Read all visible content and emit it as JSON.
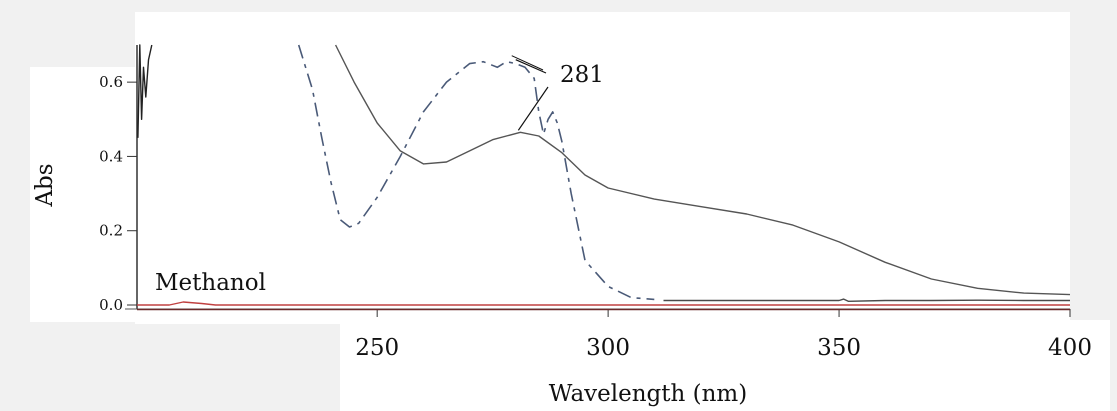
{
  "chart_data": {
    "type": "line",
    "title": "",
    "xlabel": "Wavelength (nm)",
    "ylabel": "Abs",
    "xlim": [
      198,
      400
    ],
    "ylim": [
      0.0,
      0.7
    ],
    "xticks": [
      "250",
      "300",
      "350",
      "400"
    ],
    "xtick_values": [
      250,
      300,
      350,
      400
    ],
    "yticks": [
      "0.0",
      "0.2",
      "0.4",
      "0.6"
    ],
    "ytick_values": [
      0.0,
      0.2,
      0.4,
      0.6
    ],
    "grid": false,
    "annotations": [
      {
        "text": "281",
        "x": 281,
        "y": 0.465
      },
      {
        "text": "Methanol",
        "x": 205,
        "y": 0.01
      }
    ],
    "series": [
      {
        "style": "dashed",
        "color": "#4a5a78",
        "x": [
          233,
          236,
          238,
          240,
          242,
          244,
          246,
          250,
          255,
          260,
          265,
          270,
          273,
          276,
          278,
          280,
          282,
          284,
          285,
          286,
          287,
          288,
          289,
          290,
          292,
          295,
          300,
          305,
          310
        ],
        "y": [
          0.7,
          0.58,
          0.45,
          0.33,
          0.23,
          0.21,
          0.22,
          0.29,
          0.4,
          0.52,
          0.6,
          0.65,
          0.655,
          0.64,
          0.655,
          0.65,
          0.64,
          0.61,
          0.52,
          0.46,
          0.5,
          0.52,
          0.49,
          0.44,
          0.3,
          0.12,
          0.05,
          0.02,
          0.015
        ]
      },
      {
        "style": "solid",
        "color": "#555555",
        "x": [
          241,
          245,
          250,
          255,
          260,
          265,
          270,
          275,
          281,
          285,
          290,
          295,
          300,
          310,
          320,
          330,
          340,
          350,
          360,
          370,
          380,
          390,
          400
        ],
        "y": [
          0.7,
          0.6,
          0.49,
          0.415,
          0.38,
          0.385,
          0.415,
          0.445,
          0.465,
          0.455,
          0.41,
          0.35,
          0.315,
          0.285,
          0.265,
          0.245,
          0.215,
          0.17,
          0.115,
          0.07,
          0.045,
          0.032,
          0.028
        ]
      },
      {
        "style": "solid",
        "color": "#222222",
        "x": [
          198.2,
          198.6,
          199.0,
          199.4,
          199.9,
          200.5,
          201.2
        ],
        "y": [
          0.45,
          0.7,
          0.5,
          0.64,
          0.56,
          0.66,
          0.7
        ]
      },
      {
        "style": "solid",
        "color": "#4a4a4a",
        "x": [
          312,
          340,
          350,
          351,
          352,
          360,
          370,
          380,
          390,
          400
        ],
        "y": [
          0.012,
          0.012,
          0.012,
          0.016,
          0.01,
          0.012,
          0.012,
          0.013,
          0.012,
          0.012
        ]
      },
      {
        "style": "solid",
        "color": "#c04040",
        "x": [
          198,
          205,
          208,
          212,
          215,
          230,
          260,
          300,
          340,
          400
        ],
        "y": [
          0.0,
          0.0,
          0.008,
          0.004,
          0.0,
          0.0,
          0.0,
          0.0,
          0.0,
          0.0
        ]
      },
      {
        "style": "solid",
        "color": "#6a2a2a",
        "x": [
          198,
          250,
          300,
          350,
          400
        ],
        "y": [
          -0.012,
          -0.012,
          -0.012,
          -0.012,
          -0.012
        ]
      }
    ]
  }
}
